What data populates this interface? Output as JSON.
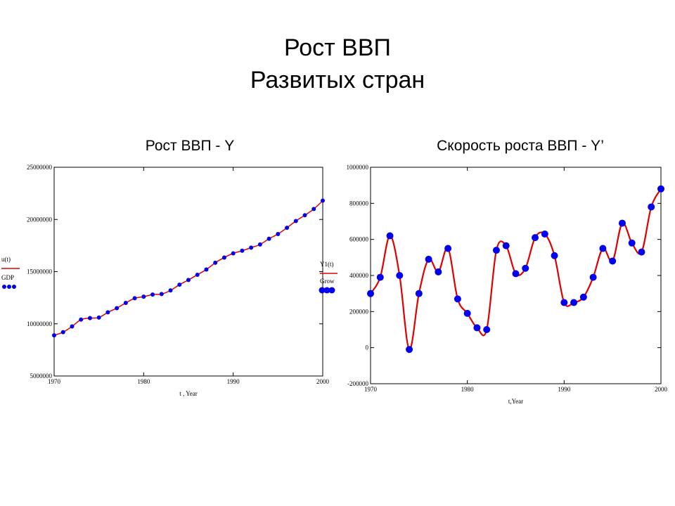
{
  "slide": {
    "title_line1": "Рост ВВП",
    "title_line2": "Развитых стран"
  },
  "chart_data": [
    {
      "type": "line",
      "title": "Рост ВВП - Y",
      "xlabel": "t , Year",
      "ylabel_top": "u(t)",
      "ylabel_bottom": "GDP",
      "xlim": [
        1970,
        2000
      ],
      "ylim": [
        5000000,
        25000000
      ],
      "x_ticks": [
        "1970",
        "1980",
        "1990",
        "2000"
      ],
      "y_ticks": [
        "5000000",
        "10000000",
        "15000000",
        "20000000",
        "25000000"
      ],
      "colors": {
        "line": "#e00000",
        "points": "#0000ee"
      },
      "series": [
        {
          "name": "u(t)",
          "style": "line",
          "x": [
            1970,
            1971,
            1972,
            1973,
            1974,
            1975,
            1976,
            1977,
            1978,
            1979,
            1980,
            1981,
            1982,
            1983,
            1984,
            1985,
            1986,
            1987,
            1988,
            1989,
            1990,
            1991,
            1992,
            1993,
            1994,
            1995,
            1996,
            1997,
            1998,
            1999,
            2000
          ],
          "values": [
            8900000,
            9200000,
            9750000,
            10400000,
            10550000,
            10600000,
            11100000,
            11500000,
            12000000,
            12450000,
            12600000,
            12800000,
            12850000,
            13200000,
            13750000,
            14200000,
            14700000,
            15200000,
            15850000,
            16350000,
            16750000,
            17000000,
            17300000,
            17600000,
            18150000,
            18600000,
            19200000,
            19850000,
            20400000,
            21000000,
            21800000
          ]
        },
        {
          "name": "GDP",
          "style": "points",
          "x": [
            1970,
            1971,
            1972,
            1973,
            1974,
            1975,
            1976,
            1977,
            1978,
            1979,
            1980,
            1981,
            1982,
            1983,
            1984,
            1985,
            1986,
            1987,
            1988,
            1989,
            1990,
            1991,
            1992,
            1993,
            1994,
            1995,
            1996,
            1997,
            1998,
            1999,
            2000
          ],
          "values": [
            8900000,
            9200000,
            9750000,
            10400000,
            10550000,
            10600000,
            11100000,
            11500000,
            12000000,
            12450000,
            12600000,
            12800000,
            12850000,
            13200000,
            13750000,
            14200000,
            14700000,
            15200000,
            15850000,
            16350000,
            16750000,
            17000000,
            17300000,
            17600000,
            18150000,
            18600000,
            19200000,
            19850000,
            20400000,
            21000000,
            21800000
          ]
        }
      ]
    },
    {
      "type": "line",
      "title": "Скорость роста ВВП - Y’",
      "xlabel": "t,Year",
      "ylabel_top": "Y1(t)",
      "ylabel_bottom": "Grow",
      "xlim": [
        1970,
        2000
      ],
      "ylim": [
        -200000,
        1000000
      ],
      "x_ticks": [
        "1970",
        "1980",
        "1990",
        "2000"
      ],
      "y_ticks": [
        "-200000",
        "0",
        "200000",
        "400000",
        "600000",
        "800000",
        "1000000"
      ],
      "colors": {
        "line": "#e00000",
        "points": "#0000ee"
      },
      "series": [
        {
          "name": "Y1(t)",
          "style": "line",
          "x": [
            1970,
            1971,
            1972,
            1973,
            1974,
            1975,
            1976,
            1977,
            1978,
            1979,
            1980,
            1981,
            1982,
            1983,
            1984,
            1985,
            1986,
            1987,
            1988,
            1989,
            1990,
            1991,
            1992,
            1993,
            1994,
            1995,
            1996,
            1997,
            1998,
            1999,
            2000
          ],
          "values": [
            300000,
            390000,
            620000,
            400000,
            -10000,
            300000,
            490000,
            420000,
            550000,
            270000,
            190000,
            110000,
            100000,
            540000,
            565000,
            410000,
            440000,
            610000,
            630000,
            510000,
            250000,
            250000,
            280000,
            390000,
            550000,
            480000,
            690000,
            580000,
            530000,
            780000,
            880000
          ]
        },
        {
          "name": "Grow",
          "style": "points",
          "x": [
            1970,
            1971,
            1972,
            1973,
            1974,
            1975,
            1976,
            1977,
            1978,
            1979,
            1980,
            1981,
            1982,
            1983,
            1984,
            1985,
            1986,
            1987,
            1988,
            1989,
            1990,
            1991,
            1992,
            1993,
            1994,
            1995,
            1996,
            1997,
            1998,
            1999,
            2000
          ],
          "values": [
            300000,
            390000,
            620000,
            400000,
            -10000,
            300000,
            490000,
            420000,
            550000,
            270000,
            190000,
            110000,
            100000,
            540000,
            565000,
            410000,
            440000,
            610000,
            630000,
            510000,
            250000,
            250000,
            280000,
            390000,
            550000,
            480000,
            690000,
            580000,
            530000,
            780000,
            880000
          ]
        }
      ]
    }
  ]
}
